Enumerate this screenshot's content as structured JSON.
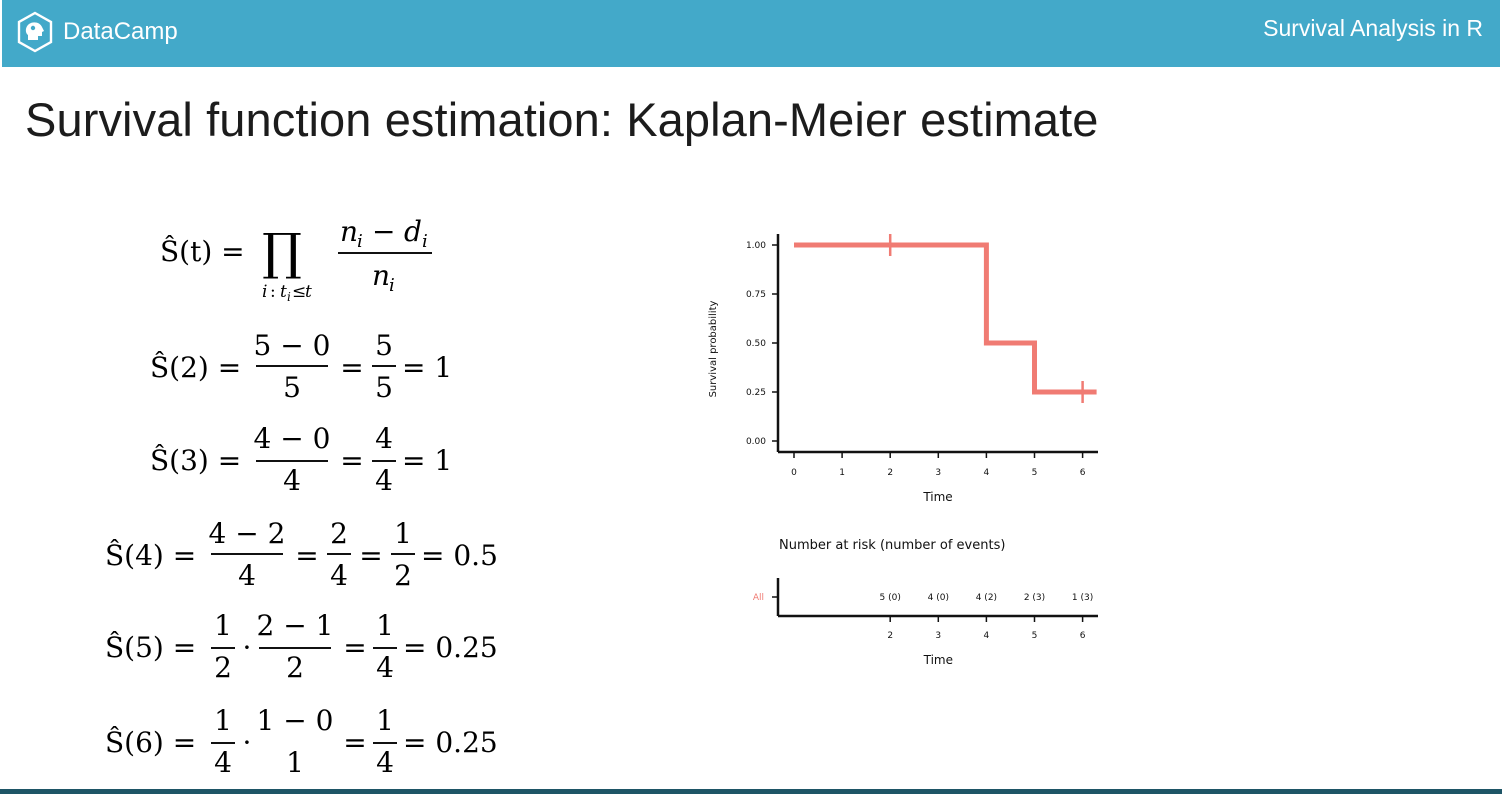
{
  "header": {
    "brand_name": "DataCamp",
    "course_title": "Survival Analysis in R",
    "bar_color": "#43a9c9",
    "logo_icon": "datacamp-head-icon"
  },
  "slide": {
    "title": "Survival function estimation: Kaplan-Meier estimate"
  },
  "formulas": {
    "general": {
      "lhs": "Ŝ(t) =",
      "product": "∏",
      "subscript_i": "i",
      "subscript_colon": ":",
      "subscript_t": "t",
      "subscript_t_i": "i",
      "subscript_leq": "≤",
      "subscript_t2": "t",
      "numerator_n": "n",
      "numerator_n_i": "i",
      "numerator_minus": "−",
      "numerator_d": "d",
      "numerator_d_i": "i",
      "denominator_n": "n",
      "denominator_n_i": "i"
    },
    "steps": [
      {
        "lhs": "Ŝ(2) =",
        "parts": [
          "5 − 0",
          "5",
          "=",
          "5",
          "5",
          "= 1"
        ]
      },
      {
        "lhs": "Ŝ(3) =",
        "parts": [
          "4 − 0",
          "4",
          "=",
          "4",
          "4",
          "= 1"
        ]
      },
      {
        "lhs": "Ŝ(4) =",
        "parts": [
          "4 − 2",
          "4",
          "=",
          "2",
          "4",
          "=",
          "1",
          "2",
          "= 0.5"
        ]
      },
      {
        "lhs": "Ŝ(5) =",
        "parts": [
          "1",
          "2",
          "·",
          "2 − 1",
          "2",
          "=",
          "1",
          "4",
          "= 0.25"
        ]
      },
      {
        "lhs": "Ŝ(6) =",
        "parts": [
          "1",
          "4",
          "·",
          "1 − 0",
          "1",
          "=",
          "1",
          "4",
          "= 0.25"
        ]
      }
    ]
  },
  "chart_data": [
    {
      "type": "line",
      "step": true,
      "color": "#f07b73",
      "xlabel": "Time",
      "ylabel": "Survival probability",
      "xlim": [
        0,
        6
      ],
      "ylim": [
        0,
        1
      ],
      "xticks": [
        "0",
        "1",
        "2",
        "3",
        "4",
        "5",
        "6"
      ],
      "yticks": [
        "0.00",
        "0.25",
        "0.50",
        "0.75",
        "1.00"
      ],
      "series": [
        {
          "x": [
            0,
            4,
            4,
            5,
            5,
            6
          ],
          "y": [
            1.0,
            1.0,
            0.5,
            0.5,
            0.25,
            0.25
          ]
        }
      ],
      "censor_marks": [
        {
          "x": 2,
          "y": 1.0
        },
        {
          "x": 6,
          "y": 0.25
        }
      ]
    },
    {
      "type": "table",
      "title": "Number at risk (number of events)",
      "strata_label": "All",
      "strata_color": "#f07b73",
      "xlabel": "Time",
      "xticks": [
        "2",
        "3",
        "4",
        "5",
        "6"
      ],
      "x": [
        2,
        3,
        4,
        5,
        6
      ],
      "cells": [
        "5 (0)",
        "4 (0)",
        "4 (2)",
        "2 (3)",
        "1 (3)"
      ]
    }
  ]
}
